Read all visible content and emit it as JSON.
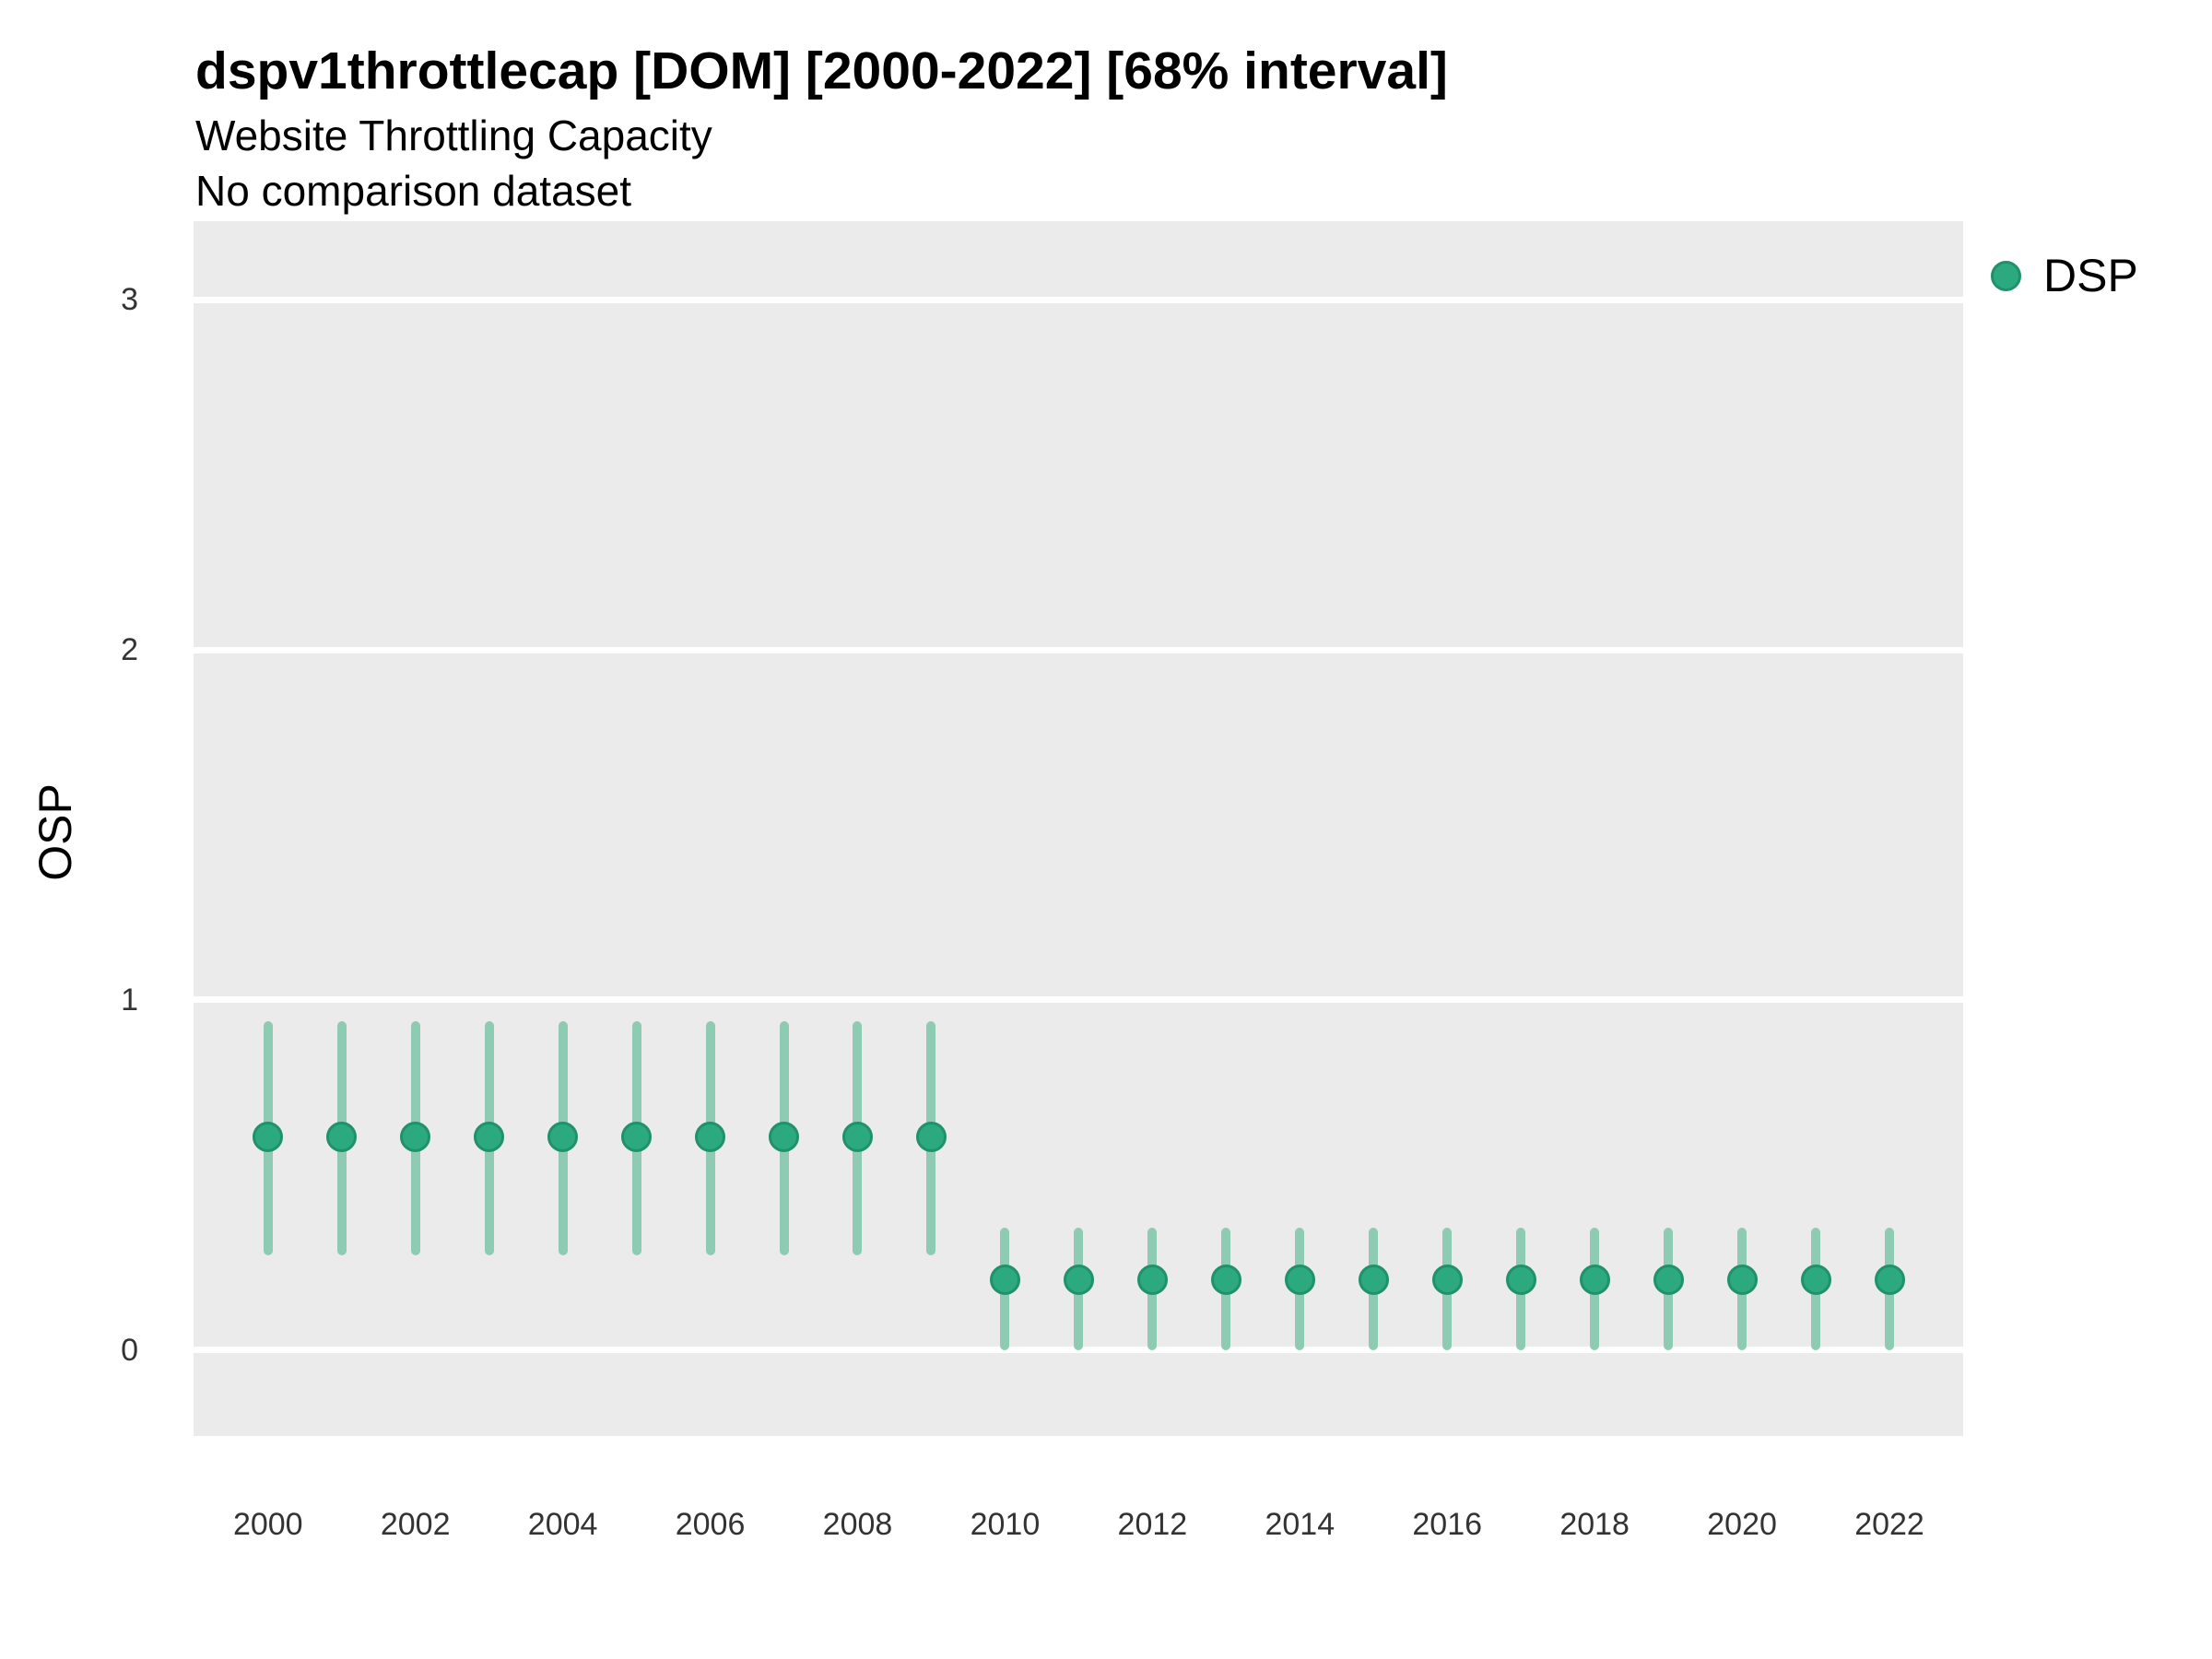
{
  "header": {
    "title": "dspv1throttlecap [DOM] [2000-2022] [68% interval]",
    "subtitle": "Website Throttling Capacity",
    "note": "No comparison dataset"
  },
  "legend": {
    "position": "top-right",
    "items": [
      {
        "label": "DSP",
        "color": "#2CA97F",
        "border_color": "#1F9269",
        "marker": "circle"
      }
    ]
  },
  "colors": {
    "panel_background": "#EBEBEB",
    "gridline": "#FFFFFF",
    "point_fill": "#2CA97F",
    "point_border": "#1F9269",
    "errorbar": "#8FCBB3",
    "tick_text": "#333333",
    "title_text": "#000000"
  },
  "chart_data": {
    "type": "scatter",
    "title": "dspv1throttlecap [DOM] [2000-2022] [68% interval]",
    "subtitle": "Website Throttling Capacity",
    "note": "No comparison dataset",
    "interval": "68%",
    "xlabel": "",
    "ylabel": "OSP",
    "xlim": [
      1998.99,
      2023.0
    ],
    "ylim": [
      -0.245,
      3.224
    ],
    "x_ticks": [
      2000,
      2002,
      2004,
      2006,
      2008,
      2010,
      2012,
      2014,
      2016,
      2018,
      2020,
      2022
    ],
    "y_ticks": [
      0,
      1,
      2,
      3
    ],
    "grid": "horizontal-major-only",
    "legend_position": "right",
    "series": [
      {
        "name": "DSP",
        "color": "#2CA97F",
        "points": [
          {
            "x": 2000,
            "y": 0.61,
            "ylo": 0.27,
            "yhi": 0.94
          },
          {
            "x": 2001,
            "y": 0.61,
            "ylo": 0.27,
            "yhi": 0.94
          },
          {
            "x": 2002,
            "y": 0.61,
            "ylo": 0.27,
            "yhi": 0.94
          },
          {
            "x": 2003,
            "y": 0.61,
            "ylo": 0.27,
            "yhi": 0.94
          },
          {
            "x": 2004,
            "y": 0.61,
            "ylo": 0.27,
            "yhi": 0.94
          },
          {
            "x": 2005,
            "y": 0.61,
            "ylo": 0.27,
            "yhi": 0.94
          },
          {
            "x": 2006,
            "y": 0.61,
            "ylo": 0.27,
            "yhi": 0.94
          },
          {
            "x": 2007,
            "y": 0.61,
            "ylo": 0.27,
            "yhi": 0.94
          },
          {
            "x": 2008,
            "y": 0.61,
            "ylo": 0.27,
            "yhi": 0.94
          },
          {
            "x": 2009,
            "y": 0.61,
            "ylo": 0.27,
            "yhi": 0.94
          },
          {
            "x": 2010,
            "y": 0.2,
            "ylo": 0.0,
            "yhi": 0.35
          },
          {
            "x": 2011,
            "y": 0.2,
            "ylo": 0.0,
            "yhi": 0.35
          },
          {
            "x": 2012,
            "y": 0.2,
            "ylo": 0.0,
            "yhi": 0.35
          },
          {
            "x": 2013,
            "y": 0.2,
            "ylo": 0.0,
            "yhi": 0.35
          },
          {
            "x": 2014,
            "y": 0.2,
            "ylo": 0.0,
            "yhi": 0.35
          },
          {
            "x": 2015,
            "y": 0.2,
            "ylo": 0.0,
            "yhi": 0.35
          },
          {
            "x": 2016,
            "y": 0.2,
            "ylo": 0.0,
            "yhi": 0.35
          },
          {
            "x": 2017,
            "y": 0.2,
            "ylo": 0.0,
            "yhi": 0.35
          },
          {
            "x": 2018,
            "y": 0.2,
            "ylo": 0.0,
            "yhi": 0.35
          },
          {
            "x": 2019,
            "y": 0.2,
            "ylo": 0.0,
            "yhi": 0.35
          },
          {
            "x": 2020,
            "y": 0.2,
            "ylo": 0.0,
            "yhi": 0.35
          },
          {
            "x": 2021,
            "y": 0.2,
            "ylo": 0.0,
            "yhi": 0.35
          },
          {
            "x": 2022,
            "y": 0.2,
            "ylo": 0.0,
            "yhi": 0.35
          }
        ]
      }
    ]
  }
}
